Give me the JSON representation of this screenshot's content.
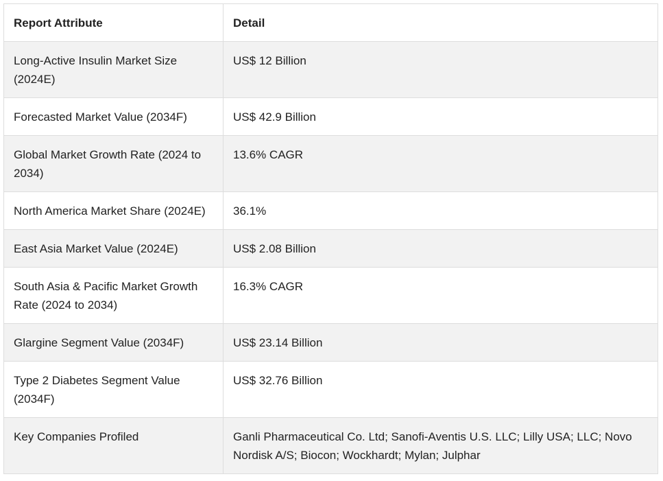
{
  "table": {
    "headers": [
      "Report Attribute",
      "Detail"
    ],
    "rows": [
      [
        "Long-Active Insulin Market Size (2024E)",
        "US$ 12 Billion"
      ],
      [
        "Forecasted Market Value (2034F)",
        "US$ 42.9 Billion"
      ],
      [
        "Global Market Growth Rate (2024 to 2034)",
        "13.6% CAGR"
      ],
      [
        "North America Market Share (2024E)",
        "36.1%"
      ],
      [
        "East Asia Market Value (2024E)",
        "US$ 2.08 Billion"
      ],
      [
        "South Asia & Pacific Market Growth Rate (2024 to 2034)",
        "16.3% CAGR"
      ],
      [
        "Glargine Segment Value (2034F)",
        "US$ 23.14 Billion"
      ],
      [
        "Type 2 Diabetes Segment Value (2034F)",
        "US$ 32.76 Billion"
      ],
      [
        "Key Companies Profiled",
        "Ganli Pharmaceutical Co. Ltd; Sanofi-Aventis U.S. LLC; Lilly USA; LLC; Novo Nordisk A/S; Biocon; Wockhardt; Mylan; Julphar"
      ]
    ]
  }
}
